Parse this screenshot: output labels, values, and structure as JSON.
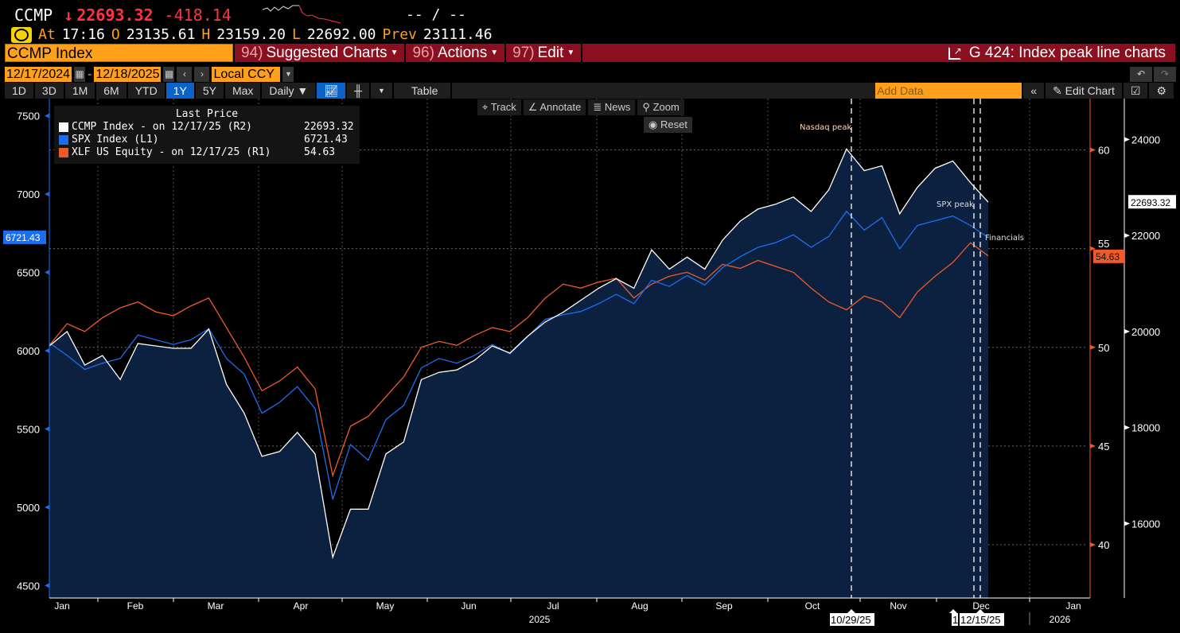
{
  "quote": {
    "ticker": "CCMP",
    "arrow": "↓",
    "last": "22693.32",
    "change": "-418.14",
    "bidask": "-- / --",
    "at_label": "At",
    "time": "17:16",
    "open_label": "O",
    "open": "23135.61",
    "high_label": "H",
    "high": "23159.20",
    "low_label": "L",
    "low": "22692.00",
    "prev_label": "Prev",
    "prev": "23111.46"
  },
  "security": "CCMP Index",
  "menu": [
    {
      "num": "94)",
      "label": "Suggested Charts"
    },
    {
      "num": "96)",
      "label": "Actions"
    },
    {
      "num": "97)",
      "label": "Edit"
    }
  ],
  "chart_title": "G 424: Index peak line charts",
  "range": {
    "start": "12/17/2024",
    "sep": "-",
    "end": "12/18/2025",
    "currency": "Local CCY"
  },
  "periods": [
    "1D",
    "3D",
    "1M",
    "6M",
    "YTD",
    "1Y",
    "5Y",
    "Max"
  ],
  "active_period": "1Y",
  "frequency": "Daily ▼",
  "table_label": "Table",
  "add_data_placeholder": "Add Data",
  "edit_chart": "Edit Chart",
  "tools": {
    "track": "Track",
    "annotate": "Annotate",
    "news": "News",
    "zoom": "Zoom",
    "reset": "Reset"
  },
  "legend": {
    "title": "Last Price",
    "rows": [
      {
        "label": "CCMP Index -  on 12/17/25  (R2)",
        "value": "22693.32",
        "color": "#ffffff"
      },
      {
        "label": "SPX Index  (L1)",
        "value": "6721.43",
        "color": "#1a6ff0"
      },
      {
        "label": "XLF US Equity -  on 12/17/25  (R1)",
        "value": "54.63",
        "color": "#f05a28"
      }
    ]
  },
  "chart_data": {
    "type": "line",
    "x": [
      "2024-12-17",
      "2024-12-24",
      "2024-12-31",
      "2025-01-07",
      "2025-01-14",
      "2025-01-21",
      "2025-01-28",
      "2025-02-04",
      "2025-02-11",
      "2025-02-18",
      "2025-02-25",
      "2025-03-04",
      "2025-03-11",
      "2025-03-18",
      "2025-03-25",
      "2025-04-01",
      "2025-04-08",
      "2025-04-15",
      "2025-04-22",
      "2025-04-29",
      "2025-05-06",
      "2025-05-13",
      "2025-05-20",
      "2025-05-27",
      "2025-06-03",
      "2025-06-10",
      "2025-06-17",
      "2025-06-24",
      "2025-07-01",
      "2025-07-08",
      "2025-07-15",
      "2025-07-22",
      "2025-07-29",
      "2025-08-05",
      "2025-08-12",
      "2025-08-19",
      "2025-08-26",
      "2025-09-02",
      "2025-09-09",
      "2025-09-16",
      "2025-09-23",
      "2025-09-30",
      "2025-10-07",
      "2025-10-14",
      "2025-10-21",
      "2025-10-28",
      "2025-11-04",
      "2025-11-11",
      "2025-11-18",
      "2025-11-25",
      "2025-12-02",
      "2025-12-09",
      "2025-12-16",
      "2025-12-17"
    ],
    "series": [
      {
        "name": "CCMP Index",
        "axis": "R2",
        "color": "#ffffff",
        "values": [
          19700,
          20000,
          19300,
          19500,
          19000,
          19750,
          19700,
          19650,
          19650,
          20050,
          18900,
          18300,
          17400,
          17500,
          17900,
          17450,
          15300,
          16300,
          16300,
          17450,
          17700,
          19000,
          19150,
          19200,
          19400,
          19700,
          19550,
          19900,
          20200,
          20400,
          20650,
          20900,
          21100,
          20900,
          21700,
          21300,
          21550,
          21300,
          21900,
          22300,
          22550,
          22650,
          22800,
          22500,
          22950,
          23800,
          23350,
          23450,
          22450,
          23000,
          23400,
          23550,
          23100,
          22693.32
        ]
      },
      {
        "name": "SPX Index",
        "axis": "L1",
        "color": "#1a6ff0",
        "values": [
          6050,
          5970,
          5880,
          5920,
          5950,
          6100,
          6070,
          6040,
          6070,
          6140,
          5950,
          5850,
          5600,
          5670,
          5770,
          5630,
          5050,
          5400,
          5300,
          5560,
          5650,
          5890,
          5950,
          5920,
          5970,
          6040,
          5980,
          6090,
          6200,
          6230,
          6250,
          6300,
          6360,
          6300,
          6450,
          6410,
          6480,
          6420,
          6530,
          6600,
          6660,
          6690,
          6740,
          6660,
          6730,
          6890,
          6770,
          6850,
          6650,
          6800,
          6830,
          6860,
          6800,
          6721.43
        ]
      },
      {
        "name": "XLF US Equity",
        "axis": "R1",
        "color": "#f05a28",
        "values": [
          50.1,
          51.2,
          50.8,
          51.5,
          52.0,
          52.3,
          51.8,
          51.6,
          52.1,
          52.5,
          51.0,
          49.5,
          47.8,
          48.3,
          49.0,
          47.9,
          43.5,
          46.0,
          46.5,
          47.5,
          48.5,
          50.0,
          50.3,
          50.1,
          50.6,
          51.0,
          50.8,
          51.5,
          52.5,
          53.2,
          53.0,
          53.3,
          53.5,
          52.5,
          53.2,
          53.6,
          53.8,
          53.4,
          54.2,
          54.0,
          54.4,
          54.1,
          53.8,
          53.0,
          52.3,
          51.9,
          52.6,
          52.3,
          51.5,
          52.8,
          53.6,
          54.3,
          55.3,
          54.63
        ]
      }
    ],
    "axes": {
      "L1": {
        "ticks": [
          "7500",
          "7000",
          "6500",
          "6000",
          "5500",
          "5000",
          "4500"
        ],
        "range": [
          4420,
          7610
        ]
      },
      "R1": {
        "ticks": [
          "60",
          "55",
          "50",
          "45",
          "40"
        ],
        "range": [
          37.3,
          62.6
        ]
      },
      "R2": {
        "ticks": [
          "24000",
          "22000",
          "20000",
          "18000",
          "16000"
        ],
        "range": [
          14450,
          24850
        ]
      }
    },
    "x_tick_labels": [
      "Jan",
      "Feb",
      "Mar",
      "Apr",
      "May",
      "Jun",
      "Jul",
      "Aug",
      "Sep",
      "Oct",
      "Nov",
      "Dec",
      "Jan"
    ],
    "year_labels": [
      "2025",
      "2026"
    ],
    "last_value_tags": {
      "L1": "6721.43",
      "R1": "54.63",
      "R2": "22693.32"
    },
    "annotations": [
      {
        "text": "Nasdaq peak",
        "date": "10/29/25"
      },
      {
        "text": "SPX peak",
        "date": "12/15/25"
      },
      {
        "text": "Financials",
        "date": "12/15/25"
      }
    ],
    "date_flags": [
      "10/29/25",
      "1",
      "12/15/25"
    ],
    "grid": true
  }
}
